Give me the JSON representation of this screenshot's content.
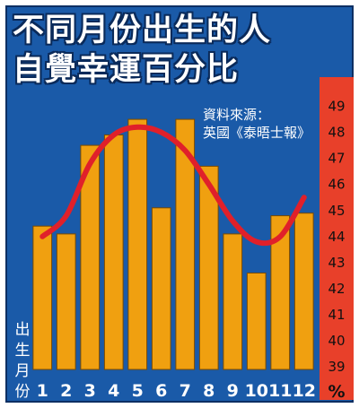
{
  "title_line1": "不同月份出生的人",
  "title_line2": "自覺幸運百分比",
  "source_line1": "資料來源：",
  "source_line2": "英國《泰晤士報》",
  "xlabel_chars": [
    "出",
    "生",
    "月",
    "份"
  ],
  "colors": {
    "background": "#1a5aa8",
    "bar": "#f0a010",
    "bar_edge": "#7a4a00",
    "curve": "#e0202a",
    "axis_band": "#e8402a"
  },
  "chart_data": {
    "type": "bar",
    "title": "不同月份出生的人自覺幸運百分比",
    "xlabel": "出生月份",
    "unit_label": "%",
    "categories": [
      "1",
      "2",
      "3",
      "4",
      "5",
      "6",
      "7",
      "8",
      "9",
      "10",
      "11",
      "12"
    ],
    "values": [
      44.4,
      44.1,
      47.5,
      47.9,
      48.5,
      45.1,
      48.5,
      46.7,
      44.1,
      42.6,
      44.8,
      44.9
    ],
    "trend_line": [
      44.0,
      44.8,
      46.8,
      47.9,
      48.2,
      48.0,
      47.3,
      46.0,
      44.6,
      43.8,
      44.0,
      45.5
    ],
    "yticks": [
      39,
      40,
      41,
      42,
      43,
      44,
      45,
      46,
      47,
      48,
      49
    ],
    "ylim": [
      38.9,
      49.5
    ],
    "ytick_side": "right",
    "grid": false,
    "legend": false
  }
}
